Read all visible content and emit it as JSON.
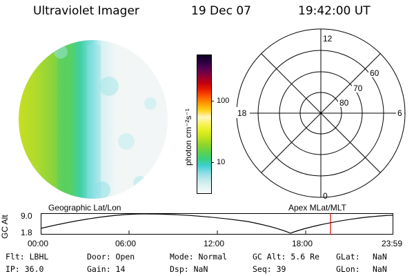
{
  "header": {
    "title": "Ultraviolet Imager",
    "date": "19 Dec 07",
    "time": "19:42:00 UT"
  },
  "colorbar": {
    "label": "photon cm⁻²s⁻¹",
    "ticks": [
      "100",
      "10"
    ],
    "colors": [
      "#f7fbfb",
      "#e0f3f2",
      "#bfe9ea",
      "#88dde4",
      "#3fcfcf",
      "#3ad07a",
      "#5fd34b",
      "#8fd42d",
      "#bde21e",
      "#e2ef1e",
      "#f8f25a",
      "#fff7c0",
      "#ffd21a",
      "#ff9a00",
      "#ff5a00",
      "#e81e00",
      "#c00010",
      "#8c0036",
      "#5a0050",
      "#2a0040",
      "#0a0020"
    ]
  },
  "polar": {
    "top": "12",
    "left": "18",
    "right": "6",
    "bottom": "0",
    "lat_60": "60",
    "lat_70": "70",
    "lat_80": "80"
  },
  "timeline": {
    "geo_label": "Geographic Lat/Lon",
    "apex_label": "Apex  MLat/MLT",
    "y_axis_label": "GC Alt",
    "y_top": "9.0",
    "y_bottom": "1.8",
    "ticks": [
      "00:00",
      "06:00",
      "12:00",
      "18:00",
      "23:59"
    ],
    "marker_color": "#e00000"
  },
  "status": {
    "flt_label": "Flt: LBHL",
    "ip_label": "IP: 36.0",
    "door_label": "Door: Open",
    "gain_label": "Gain: 14",
    "mode_label": "Mode: Normal",
    "dsp_label": "Dsp:     NaN",
    "gcalt_label": "GC Alt: 5.6 Re",
    "seq_label": "Seq: 39",
    "glat_label": "GLat:",
    "glat_value": "NaN",
    "glon_label": "GLon:",
    "glon_value": "NaN"
  }
}
